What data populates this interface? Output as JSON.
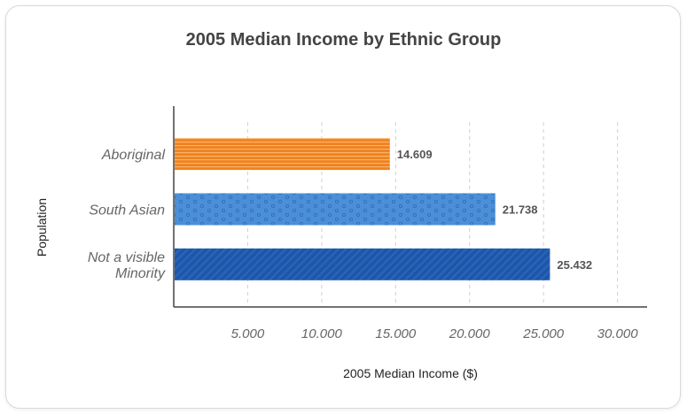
{
  "chart_data": {
    "type": "bar",
    "orientation": "horizontal",
    "title": "2005 Median Income by Ethnic Group",
    "xlabel": "2005 Median Income ($)",
    "ylabel": "Population",
    "categories": [
      [
        "Aboriginal"
      ],
      [
        "South Asian"
      ],
      [
        "Not a visible",
        "Minority"
      ]
    ],
    "values": [
      14609,
      21738,
      25432
    ],
    "value_labels": [
      "14.609",
      "21.738",
      "25.432"
    ],
    "xlim": [
      0,
      32000
    ],
    "ticks": [
      5000,
      10000,
      15000,
      20000,
      25000,
      30000
    ],
    "tick_labels": [
      "5.000",
      "10.000",
      "15.000",
      "20.000",
      "25.000",
      "30.000"
    ],
    "grid": true,
    "colors": [
      "#f0821e",
      "#4a8fd8",
      "#1e56a8"
    ]
  }
}
